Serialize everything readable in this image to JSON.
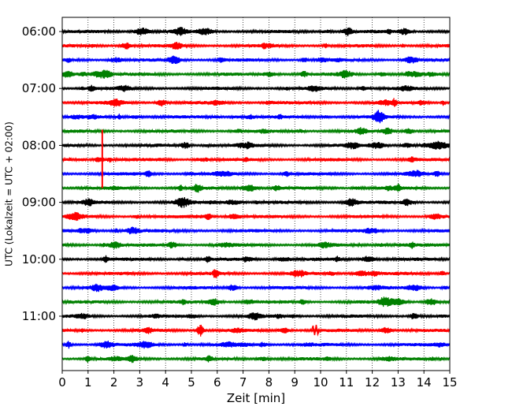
{
  "chart_data": {
    "type": "line",
    "title": "",
    "xlabel": "Zeit  [min]",
    "ylabel": "UTC (Lokalzeit = UTC + 02:00)",
    "xlim": [
      0,
      15
    ],
    "x_ticks": [
      0,
      1,
      2,
      3,
      4,
      5,
      6,
      7,
      8,
      9,
      10,
      11,
      12,
      13,
      14,
      15
    ],
    "y_ticks": [
      {
        "label": "06:00",
        "row": 0
      },
      {
        "label": "07:00",
        "row": 4
      },
      {
        "label": "08:00",
        "row": 8
      },
      {
        "label": "09:00",
        "row": 12
      },
      {
        "label": "10:00",
        "row": 16
      },
      {
        "label": "11:00",
        "row": 20
      }
    ],
    "grid": "vertical-dotted",
    "trace_minutes": 15,
    "row_colors": [
      "#000000",
      "#ff0000",
      "#0000ff",
      "#008000"
    ],
    "rows": [
      {
        "start": "06:00",
        "color": "#000000"
      },
      {
        "start": "06:15",
        "color": "#ff0000"
      },
      {
        "start": "06:30",
        "color": "#0000ff"
      },
      {
        "start": "06:45",
        "color": "#008000"
      },
      {
        "start": "07:00",
        "color": "#000000"
      },
      {
        "start": "07:15",
        "color": "#ff0000"
      },
      {
        "start": "07:30",
        "color": "#0000ff"
      },
      {
        "start": "07:45",
        "color": "#008000"
      },
      {
        "start": "08:00",
        "color": "#000000"
      },
      {
        "start": "08:15",
        "color": "#ff0000"
      },
      {
        "start": "08:30",
        "color": "#0000ff"
      },
      {
        "start": "08:45",
        "color": "#008000"
      },
      {
        "start": "09:00",
        "color": "#000000"
      },
      {
        "start": "09:15",
        "color": "#ff0000"
      },
      {
        "start": "09:30",
        "color": "#0000ff"
      },
      {
        "start": "09:45",
        "color": "#008000"
      },
      {
        "start": "10:00",
        "color": "#000000"
      },
      {
        "start": "10:15",
        "color": "#ff0000"
      },
      {
        "start": "10:30",
        "color": "#0000ff"
      },
      {
        "start": "10:45",
        "color": "#008000"
      },
      {
        "start": "11:00",
        "color": "#000000"
      },
      {
        "start": "11:15",
        "color": "#ff0000"
      },
      {
        "start": "11:30",
        "color": "#0000ff"
      },
      {
        "start": "11:45",
        "color": "#008000"
      }
    ],
    "events": [
      {
        "row": 9,
        "minute": 1.55,
        "amplitude": "large"
      },
      {
        "row": 21,
        "minute": 9.8,
        "amplitude": "medium"
      }
    ]
  }
}
